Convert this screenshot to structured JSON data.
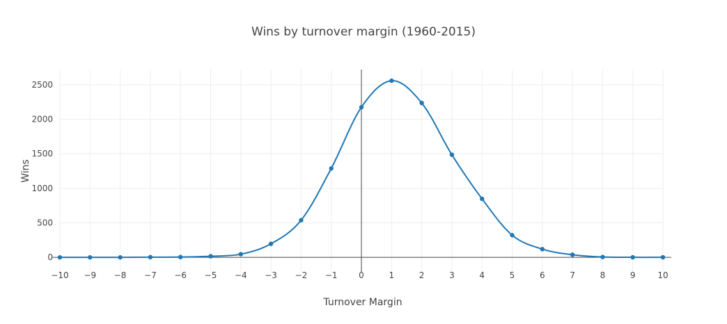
{
  "chart_data": {
    "type": "line",
    "title": "Wins by turnover margin (1960-2015)",
    "xlabel": "Turnover Margin",
    "ylabel": "Wins",
    "x": [
      -10,
      -9,
      -8,
      -7,
      -6,
      -5,
      -4,
      -3,
      -2,
      -1,
      0,
      1,
      2,
      3,
      4,
      5,
      6,
      7,
      8,
      9,
      10
    ],
    "series": [
      {
        "name": "",
        "color": "#1f77b4",
        "values": [
          0,
          0,
          0,
          3,
          4,
          16,
          46,
          196,
          538,
          1288,
          2174,
          2558,
          2236,
          1486,
          848,
          321,
          119,
          38,
          5,
          1,
          1
        ]
      }
    ],
    "xlim": [
      -10,
      10
    ],
    "ylim": [
      -220,
      2720
    ],
    "x_ticks": [
      "−10",
      "−9",
      "−8",
      "−7",
      "−6",
      "−5",
      "−4",
      "−3",
      "−2",
      "−1",
      "0",
      "1",
      "2",
      "3",
      "4",
      "5",
      "6",
      "7",
      "8",
      "9",
      "10"
    ],
    "y_ticks": [
      0,
      500,
      1000,
      1500,
      2000,
      2500
    ],
    "y_tick_labels": [
      "0",
      "500",
      "1000",
      "1500",
      "2000",
      "2500"
    ],
    "grid": true,
    "legend": "none",
    "line_shape": "spline"
  }
}
